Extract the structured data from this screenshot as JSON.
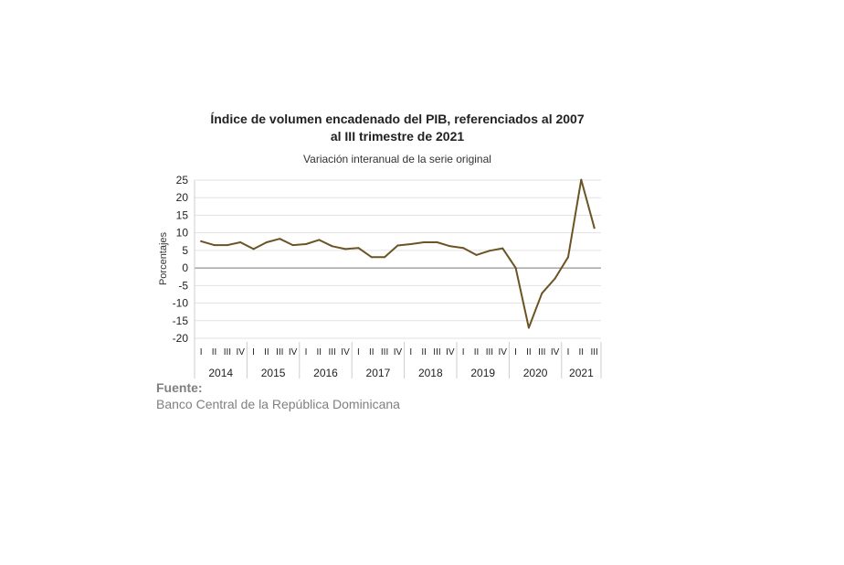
{
  "chart_data": {
    "type": "line",
    "title_line1": "Índice de volumen encadenado del PIB, referenciados al 2007",
    "title_line2": "al III trimestre de 2021",
    "subtitle": "Variación interanual de la serie original",
    "ylabel": "Porcentajes",
    "ylim": [
      -20,
      25
    ],
    "yticks": [
      25,
      20,
      15,
      10,
      5,
      0,
      -5,
      -10,
      -15,
      -20
    ],
    "grid": true,
    "years": [
      "2014",
      "2015",
      "2016",
      "2017",
      "2018",
      "2019",
      "2020",
      "2021"
    ],
    "quarters": [
      "I",
      "II",
      "III",
      "IV",
      "I",
      "II",
      "III",
      "IV",
      "I",
      "II",
      "III",
      "IV",
      "I",
      "II",
      "III",
      "IV",
      "I",
      "II",
      "III",
      "IV",
      "I",
      "II",
      "III",
      "IV",
      "I",
      "II",
      "III",
      "IV",
      "I",
      "II",
      "III"
    ],
    "series": [
      {
        "color": "#6b5424",
        "values": [
          7.6,
          6.5,
          6.5,
          7.3,
          5.4,
          7.3,
          8.3,
          6.5,
          6.8,
          8.0,
          6.2,
          5.4,
          5.7,
          3.1,
          3.1,
          6.4,
          6.8,
          7.3,
          7.3,
          6.2,
          5.7,
          3.7,
          4.9,
          5.6,
          0.0,
          -17.0,
          -7.2,
          -3.0,
          3.1,
          25.1,
          11.4
        ]
      }
    ]
  },
  "source": {
    "label": "Fuente:",
    "text": "Banco Central de la República Dominicana"
  }
}
